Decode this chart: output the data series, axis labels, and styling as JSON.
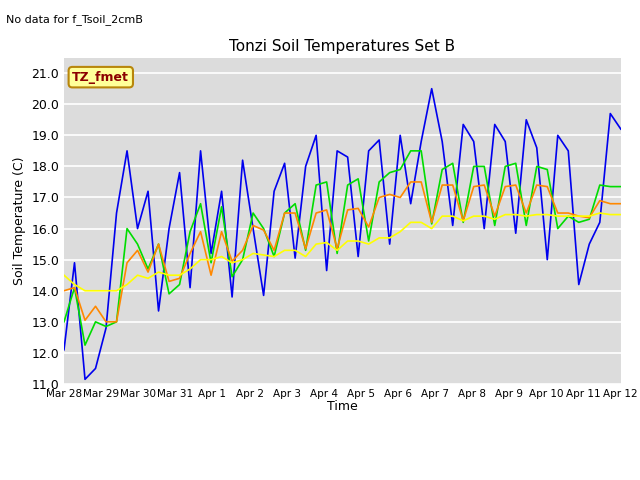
{
  "title": "Tonzi Soil Temperatures Set B",
  "ylabel": "Soil Temperature (C)",
  "xlabel": "Time",
  "no_data_text": "No data for f_Tsoil_2cmB",
  "tz_label": "TZ_fmet",
  "ylim": [
    11.0,
    21.5
  ],
  "yticks": [
    11.0,
    12.0,
    13.0,
    14.0,
    15.0,
    16.0,
    17.0,
    18.0,
    19.0,
    20.0,
    21.0
  ],
  "xtick_labels": [
    "Mar 28",
    "Mar 29",
    "Mar 30",
    "Mar 31",
    "Apr 1",
    "Apr 2",
    "Apr 3",
    "Apr 4",
    "Apr 5",
    "Apr 6",
    "Apr 7",
    "Apr 8",
    "Apr 9",
    "Apr 10",
    "Apr 11",
    "Apr 12"
  ],
  "colors": {
    "4cm": "#0000ee",
    "8cm": "#00dd00",
    "16cm": "#ff8800",
    "32cm": "#ffff00"
  },
  "bg_color": "#dcdcdc",
  "line_width": 1.2,
  "t_4cm": [
    12.1,
    14.9,
    11.15,
    11.5,
    12.8,
    16.5,
    18.5,
    16.0,
    17.2,
    13.35,
    16.0,
    17.8,
    14.1,
    18.5,
    15.2,
    17.2,
    13.8,
    18.2,
    16.0,
    13.85,
    17.2,
    18.1,
    15.05,
    18.0,
    19.0,
    14.65,
    18.5,
    18.3,
    15.1,
    18.5,
    18.85,
    15.5,
    19.0,
    16.8,
    18.8,
    20.5,
    18.8,
    16.1,
    19.35,
    18.8,
    16.0,
    19.35,
    18.8,
    15.85,
    19.5,
    18.6,
    15.0,
    19.0,
    18.5,
    14.2,
    15.5,
    16.2,
    19.7,
    19.2
  ],
  "t_8cm": [
    13.0,
    14.1,
    12.25,
    13.0,
    12.85,
    13.0,
    16.0,
    15.5,
    14.7,
    15.5,
    13.9,
    14.2,
    15.9,
    16.8,
    14.9,
    16.7,
    14.45,
    15.0,
    16.5,
    16.0,
    15.1,
    16.5,
    16.8,
    15.3,
    17.4,
    17.5,
    15.2,
    17.4,
    17.6,
    15.6,
    17.5,
    17.8,
    17.9,
    18.5,
    18.5,
    16.15,
    17.9,
    18.1,
    16.2,
    18.0,
    18.0,
    16.1,
    18.0,
    18.1,
    16.1,
    18.0,
    17.9,
    16.0,
    16.4,
    16.2,
    16.3,
    17.4,
    17.35,
    17.35
  ],
  "t_16cm": [
    14.0,
    14.1,
    13.05,
    13.5,
    13.0,
    13.0,
    14.9,
    15.3,
    14.6,
    15.5,
    14.3,
    14.4,
    15.2,
    15.9,
    14.5,
    15.9,
    14.95,
    15.3,
    16.1,
    15.95,
    15.3,
    16.5,
    16.5,
    15.35,
    16.5,
    16.6,
    15.35,
    16.6,
    16.65,
    16.05,
    17.0,
    17.1,
    17.0,
    17.5,
    17.5,
    16.2,
    17.4,
    17.4,
    16.25,
    17.35,
    17.4,
    16.4,
    17.35,
    17.4,
    16.5,
    17.4,
    17.35,
    16.5,
    16.5,
    16.4,
    16.35,
    16.9,
    16.8,
    16.8
  ],
  "t_32cm": [
    14.5,
    14.2,
    14.0,
    14.0,
    14.0,
    14.0,
    14.2,
    14.5,
    14.4,
    14.6,
    14.5,
    14.5,
    14.7,
    15.0,
    15.0,
    15.1,
    14.9,
    15.0,
    15.2,
    15.15,
    15.1,
    15.3,
    15.3,
    15.1,
    15.5,
    15.55,
    15.3,
    15.6,
    15.6,
    15.5,
    15.7,
    15.7,
    15.9,
    16.2,
    16.2,
    16.0,
    16.4,
    16.4,
    16.25,
    16.4,
    16.4,
    16.3,
    16.45,
    16.45,
    16.4,
    16.45,
    16.45,
    16.4,
    16.4,
    16.4,
    16.4,
    16.5,
    16.45,
    16.45
  ]
}
